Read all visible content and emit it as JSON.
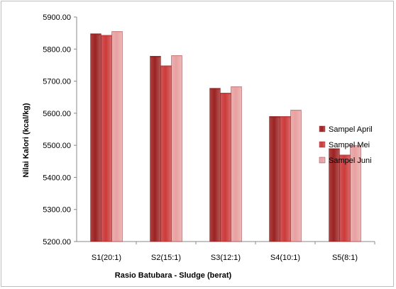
{
  "chart_data": {
    "type": "bar",
    "title": "",
    "xlabel": "Rasio Batubara - Sludge (berat)",
    "ylabel": "Nilai Kalori (kcal/kg)",
    "ylim": [
      5200,
      5900
    ],
    "yticks": [
      "5200.00",
      "5300.00",
      "5400.00",
      "5500.00",
      "5600.00",
      "5700.00",
      "5800.00",
      "5900.00"
    ],
    "categories": [
      "S1(20:1)",
      "S2(15:1)",
      "S3(12:1)",
      "S4(10:1)",
      "S5(8:1)"
    ],
    "series": [
      {
        "name": "Sampel April",
        "color": "#9b2222",
        "values": [
          5848,
          5778,
          5678,
          5590,
          5490
        ]
      },
      {
        "name": "Sampel Mei",
        "color": "#cc3a3a",
        "values": [
          5843,
          5748,
          5663,
          5590,
          5470
        ]
      },
      {
        "name": "Sampel Juni",
        "color": "#e8a1a1",
        "values": [
          5855,
          5780,
          5683,
          5610,
          5500
        ]
      }
    ],
    "grid": false,
    "legend": "right"
  }
}
